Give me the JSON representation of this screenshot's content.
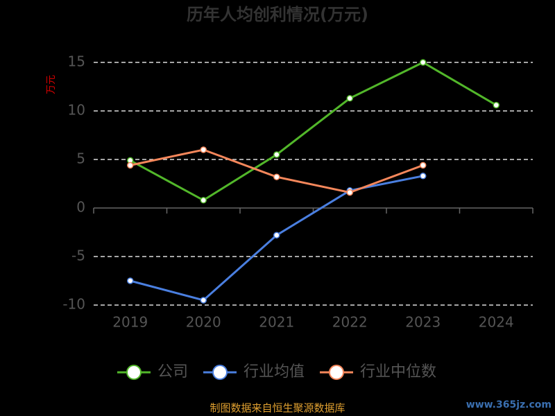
{
  "chart_data": {
    "type": "line",
    "title": "历年人均创利情况(万元)",
    "y_label": "万元",
    "categories": [
      "2019",
      "2020",
      "2021",
      "2022",
      "2023",
      "2024"
    ],
    "series": [
      {
        "name": "公司",
        "color": "#52b72a",
        "values": [
          4.9,
          0.8,
          5.5,
          11.3,
          15.0,
          10.6
        ]
      },
      {
        "name": "行业均值",
        "color": "#4a7fe0",
        "values": [
          -7.5,
          -9.5,
          -2.8,
          1.8,
          3.3,
          null
        ]
      },
      {
        "name": "行业中位数",
        "color": "#f5875b",
        "values": [
          4.4,
          6.0,
          3.2,
          1.6,
          4.4,
          null
        ]
      }
    ],
    "ylim": [
      -10,
      15
    ],
    "yticks": [
      -10,
      -5,
      0,
      5,
      10,
      15
    ],
    "grid": true,
    "legend": "bottom",
    "source": "制图数据来自恒生聚源数据库",
    "watermark": "www.365jz.com"
  }
}
